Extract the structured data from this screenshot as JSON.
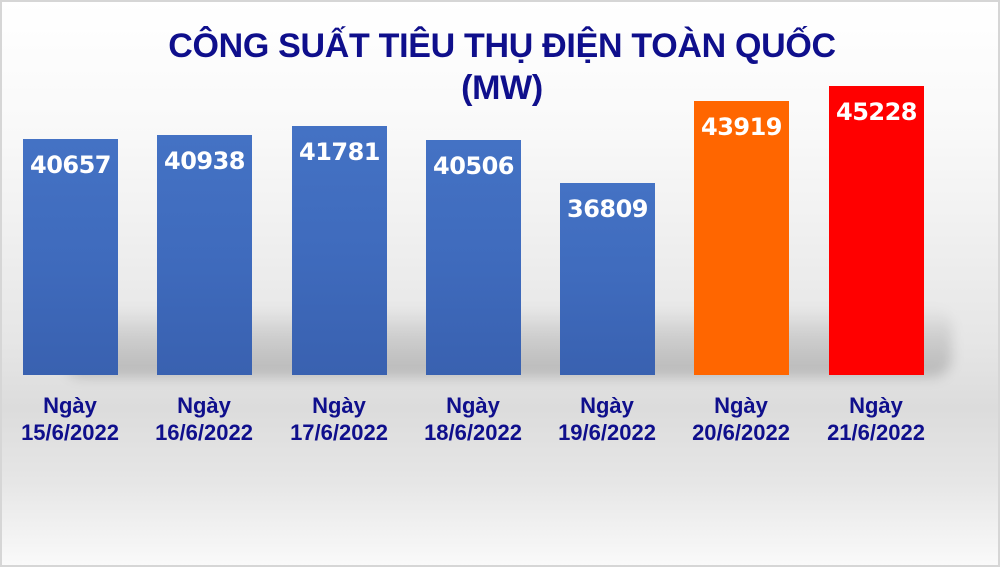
{
  "chart_data": {
    "type": "bar",
    "title": "CÔNG SUẤT TIÊU THỤ ĐIỆN TOÀN QUỐC",
    "subtitle": "(MW)",
    "xlabel": "",
    "ylabel": "MW",
    "categories": [
      {
        "line1": "Ngày",
        "line2": "15/6/2022"
      },
      {
        "line1": "Ngày",
        "line2": "16/6/2022"
      },
      {
        "line1": "Ngày",
        "line2": "17/6/2022"
      },
      {
        "line1": "Ngày",
        "line2": "18/6/2022"
      },
      {
        "line1": "Ngày",
        "line2": "19/6/2022"
      },
      {
        "line1": "Ngày",
        "line2": "20/6/2022"
      },
      {
        "line1": "Ngày",
        "line2": "21/6/2022"
      }
    ],
    "values": [
      40657,
      40938,
      41781,
      40506,
      36809,
      43919,
      45228
    ],
    "value_labels": [
      "40657",
      "40938",
      "41781",
      "40506",
      "36809",
      "43919",
      "45228"
    ],
    "bar_colors": [
      "#4472c4",
      "#4472c4",
      "#4472c4",
      "#4472c4",
      "#4472c4",
      "#ff6600",
      "#ff0000"
    ],
    "data_labels_inside_top": true,
    "grid": false,
    "legend": false,
    "axis_visible": false
  },
  "colors": {
    "title": "#0f0f8c",
    "bar_default": "#4472c4",
    "bar_highlight_1": "#ff6600",
    "bar_highlight_2": "#ff0000",
    "value_text": "#ffffff"
  }
}
